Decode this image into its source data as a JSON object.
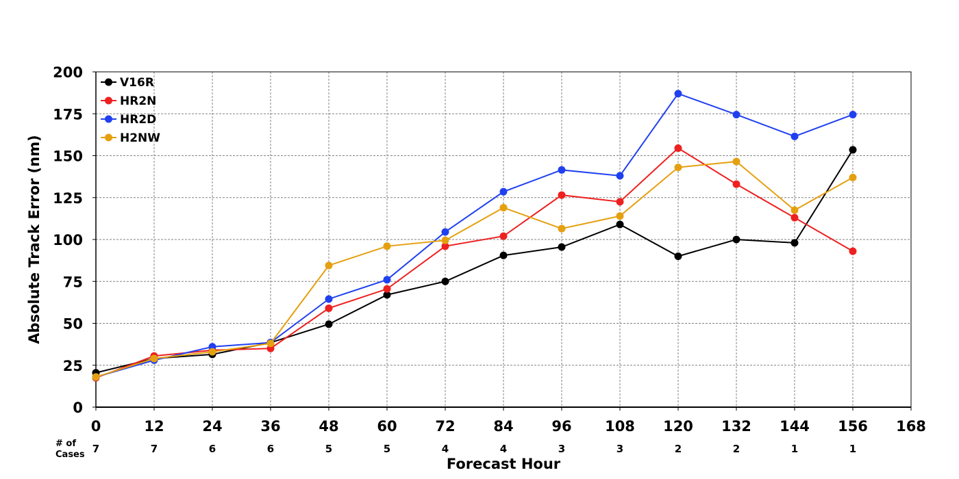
{
  "chart_data": {
    "type": "line",
    "title": "",
    "xlabel": "Forecast Hour",
    "ylabel": "Absolute Track Error (nm)",
    "xlim": [
      0,
      168
    ],
    "ylim": [
      0,
      200
    ],
    "xticks": [
      "0",
      "12",
      "24",
      "36",
      "48",
      "60",
      "72",
      "84",
      "96",
      "108",
      "120",
      "132",
      "144",
      "156",
      "168"
    ],
    "yticks": [
      "0",
      "25",
      "50",
      "75",
      "100",
      "125",
      "150",
      "175",
      "200"
    ],
    "grid": true,
    "legend_position": "top-left",
    "x": [
      0,
      12,
      24,
      36,
      48,
      60,
      72,
      84,
      96,
      108,
      120,
      132,
      144,
      156
    ],
    "cases_label_line1": "# of",
    "cases_label_line2": "Cases",
    "cases": [
      "7",
      "7",
      "6",
      "6",
      "5",
      "5",
      "4",
      "4",
      "3",
      "3",
      "2",
      "2",
      "1",
      "1"
    ],
    "series": [
      {
        "name": "V16R",
        "color": "#000000",
        "values": [
          20.5,
          29,
          31.5,
          38.5,
          49.5,
          67,
          75,
          90.5,
          95.5,
          109,
          90,
          100,
          98,
          153.5
        ]
      },
      {
        "name": "HR2N",
        "color": "#ee2020",
        "values": [
          17.5,
          30.5,
          34,
          35,
          59,
          70.5,
          96,
          102,
          126.5,
          122.5,
          154.5,
          133,
          113,
          93
        ]
      },
      {
        "name": "HR2D",
        "color": "#2040f0",
        "values": [
          18,
          28,
          36,
          38.5,
          64.5,
          76,
          104.5,
          128.5,
          141.5,
          138,
          187,
          174.5,
          161.5,
          174.5
        ]
      },
      {
        "name": "H2NW",
        "color": "#e5a010",
        "values": [
          18,
          29,
          33,
          38,
          84.5,
          96,
          99.5,
          119,
          106.5,
          114,
          143,
          146.5,
          117.5,
          137
        ]
      }
    ]
  }
}
